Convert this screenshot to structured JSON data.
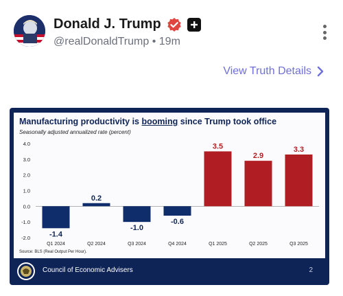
{
  "post": {
    "display_name": "Donald J. Trump",
    "handle": "@realDonaldTrump",
    "separator": "•",
    "time": "19m",
    "avatar_icon": "avatar-portrait",
    "verified_icon": "verified-check-icon",
    "plus_icon": "plus-badge-icon",
    "menu_icon": "more-vertical-icon"
  },
  "details_link": {
    "label": "View Truth Details",
    "icon": "chevron-right-icon"
  },
  "colors": {
    "accent": "#6f6fd8",
    "verified": "#e0463f",
    "navy": "#0f2456",
    "bar_blue": "#0f2c6b",
    "bar_red": "#b01e23"
  },
  "slide": {
    "title_pre": "Manufacturing productivity is ",
    "title_emph": "booming",
    "title_post": " since Trump took office",
    "subtitle": "Seasonally adjusted annualized rate (percent)",
    "source": "Source: BLS (Real Output Per Hour).",
    "footer_org": "Council of Economic Advisers",
    "page_number": "2"
  },
  "chart_data": {
    "type": "bar",
    "title": "Manufacturing productivity is booming since Trump took office",
    "ylabel": "Seasonally adjusted annualized rate (percent)",
    "categories": [
      "Q1 2024",
      "Q2 2024",
      "Q3 2024",
      "Q4 2024",
      "Q1 2025",
      "Q2 2025",
      "Q3 2025"
    ],
    "values": [
      -1.4,
      0.2,
      -1.0,
      -0.6,
      3.5,
      2.9,
      3.3
    ],
    "value_labels": [
      "-1.4",
      "0.2",
      "-1.0",
      "-0.6",
      "3.5",
      "2.9",
      "3.3"
    ],
    "y_ticks": [
      "4.0",
      "3.0",
      "2.0",
      "1.0",
      "0.0",
      "-1.0",
      "-2.0"
    ],
    "ylim": [
      -2.0,
      4.0
    ],
    "bar_colors": [
      "#0f2c6b",
      "#0f2c6b",
      "#0f2c6b",
      "#0f2c6b",
      "#b01e23",
      "#b01e23",
      "#b01e23"
    ],
    "grid": false,
    "legend": "none"
  }
}
